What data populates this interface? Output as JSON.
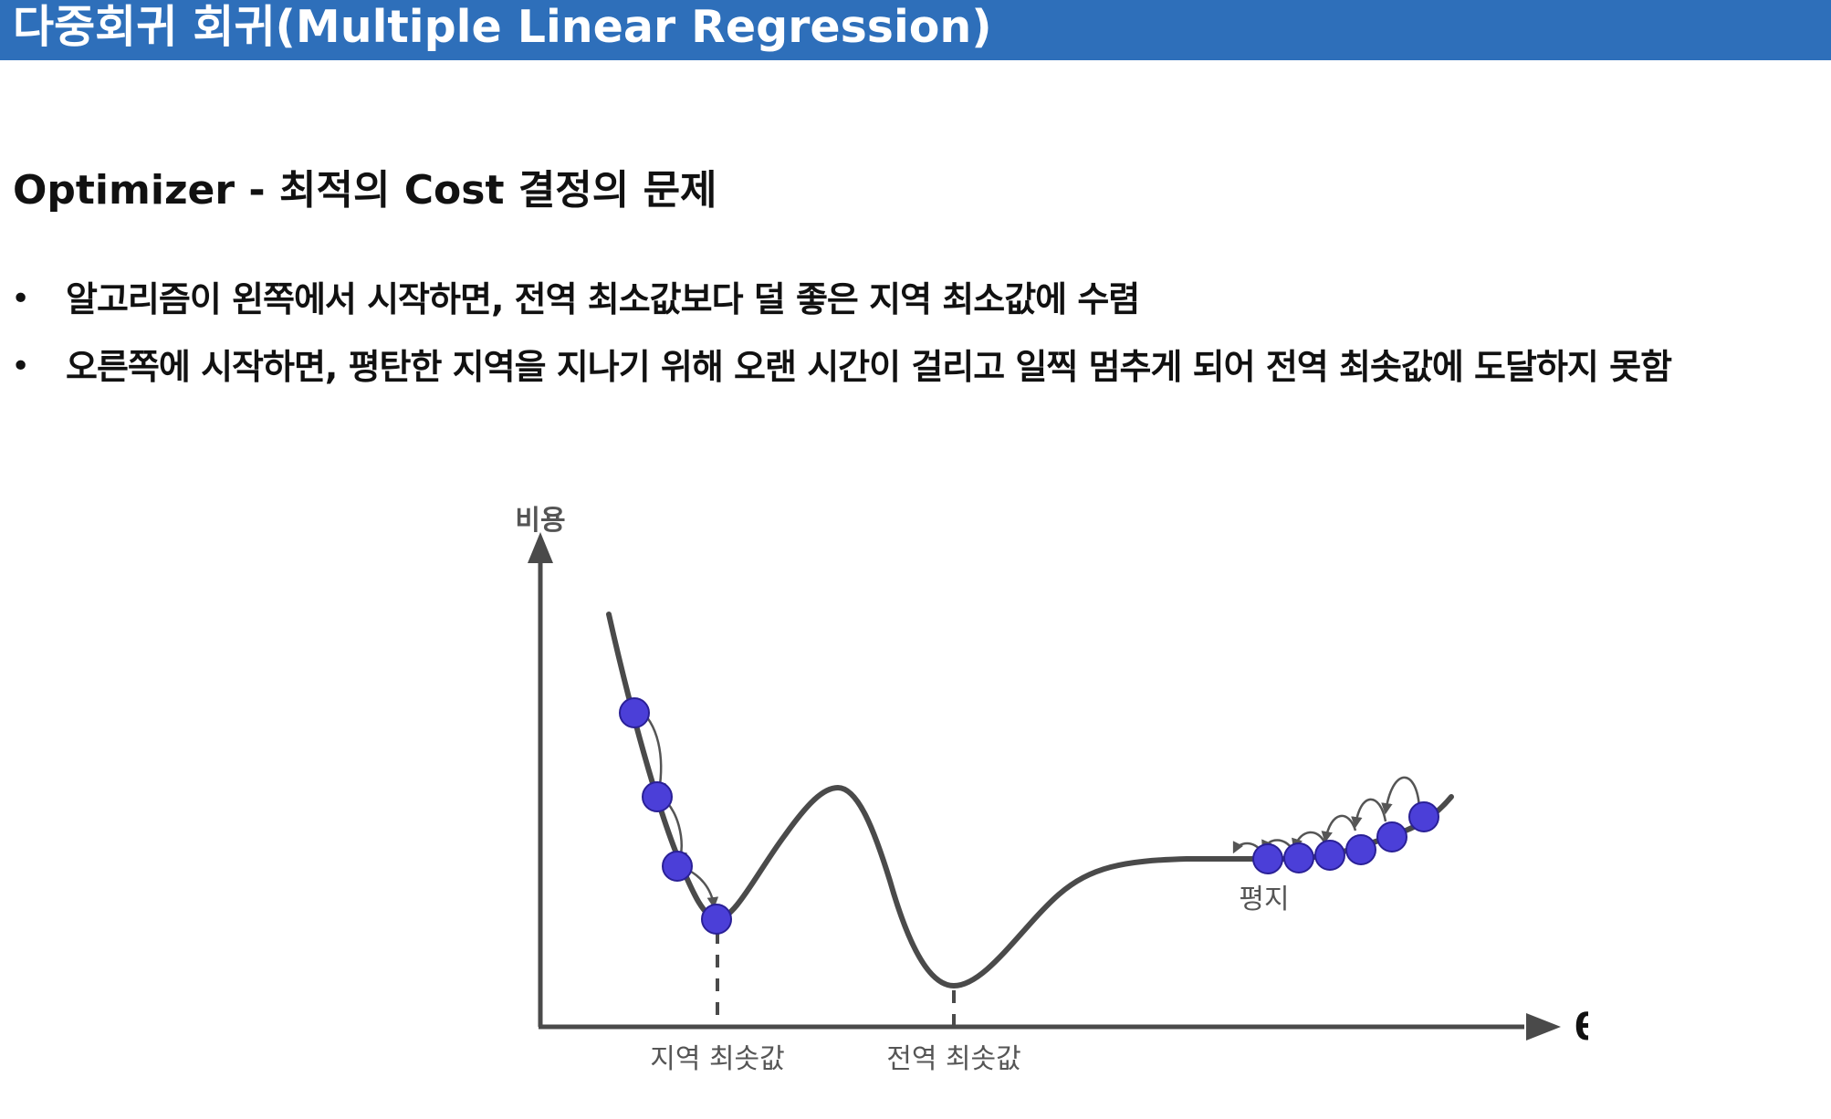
{
  "header": {
    "title": "다중회귀 회귀(Multiple Linear Regression)"
  },
  "section": {
    "heading": "Optimizer - 최적의 Cost 결정의 문제"
  },
  "bullets": {
    "marker": "•",
    "items": [
      "알고리즘이 왼쪽에서 시작하면, 전역 최소값보다 덜 좋은 지역 최소값에 수렴",
      "오른쪽에 시작하면, 평탄한 지역을 지나기 위해 오랜 시간이 걸리고 일찍 멈추게 되어 전역 최솟값에 도달하지 못함"
    ]
  },
  "figure": {
    "y_axis_label": "비용",
    "x_axis_label": "θ",
    "local_min_label": "지역 최솟값",
    "global_min_label": "전역 최솟값",
    "plateau_label": "평지",
    "curve_color": "#4a4a4a",
    "ball_color": "#4b3fd8",
    "axis_color": "#4a4a4a"
  },
  "colors": {
    "title_bar": "#2e6fba",
    "title_text": "#ffffff",
    "body_text": "#111111"
  }
}
